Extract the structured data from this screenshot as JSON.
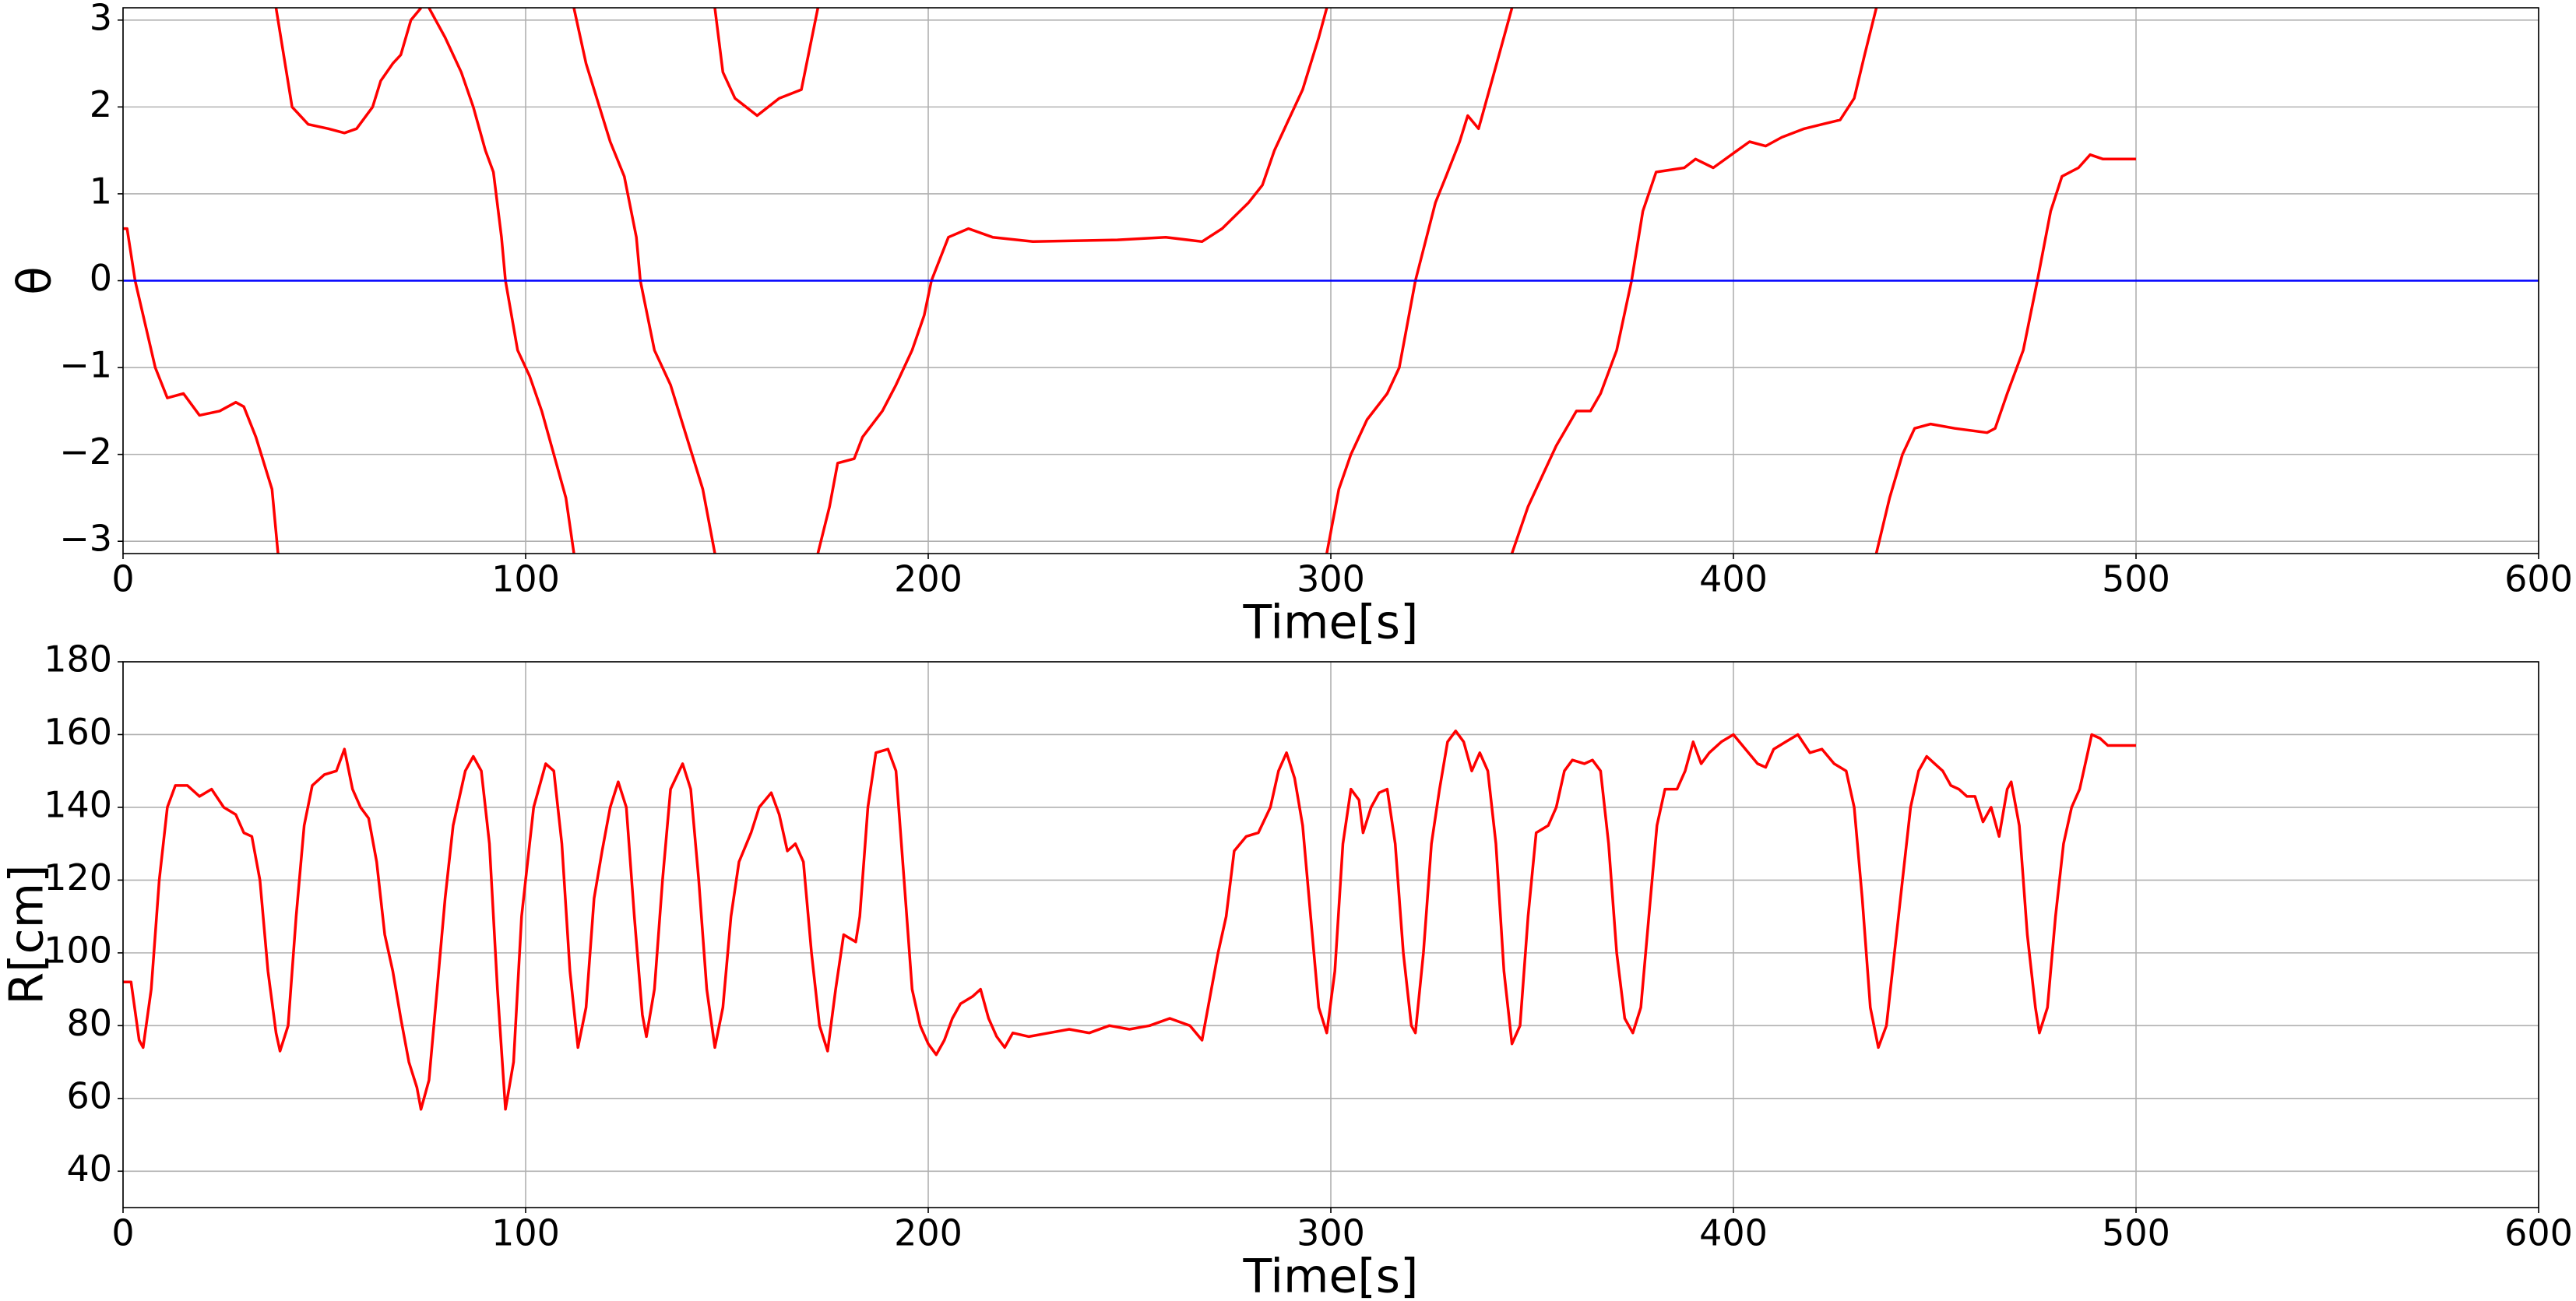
{
  "chart_data": [
    {
      "type": "line",
      "xlabel": "Time[s]",
      "ylabel": "θ",
      "xlim": [
        0,
        600
      ],
      "xticks": [
        0,
        100,
        200,
        300,
        400,
        500,
        600
      ],
      "ylim": [
        -3.14159,
        3.14159
      ],
      "yticks": [
        {
          "value": -3,
          "label": "−3"
        },
        {
          "value": -2,
          "label": "−2"
        },
        {
          "value": -1,
          "label": "−1"
        },
        0,
        1,
        2,
        3
      ],
      "grid": true,
      "series": [
        {
          "color": "#ff0000",
          "x": [
            0,
            1,
            3,
            8,
            11,
            15,
            19,
            24,
            28,
            30,
            33,
            37,
            38.5,
            38.6,
            38,
            42,
            46,
            51,
            55,
            58,
            62,
            64,
            67,
            69,
            71.5,
            74,
            74.1,
            76,
            80,
            84,
            87,
            90,
            92,
            94,
            95,
            98,
            101,
            104,
            107,
            110,
            112,
            112.1,
            112,
            115,
            121,
            124.5,
            127.5,
            128.5,
            132,
            136,
            140,
            144,
            147,
            147.1,
            147,
            149,
            152,
            157.5,
            163,
            168.5,
            172.6,
            172.7,
            172.6,
            175.5,
            177.5,
            181.6,
            183.7,
            188.6,
            192,
            196,
            199,
            200.8,
            205,
            210,
            216,
            226,
            247,
            259,
            268,
            273,
            279.6,
            283,
            286,
            289,
            293,
            297,
            299,
            299.1,
            299,
            302,
            305,
            309,
            314,
            317,
            321,
            326,
            328.6,
            332,
            334,
            336.7,
            340,
            345,
            345.1,
            345,
            349,
            353,
            356,
            361,
            364.5,
            367,
            371,
            374.7,
            377.5,
            380.8,
            387.8,
            390.6,
            395,
            401,
            404,
            408,
            412,
            417.6,
            422,
            426.5,
            430,
            432.6,
            435.5,
            435.6,
            435.5,
            438.8,
            442,
            445,
            449,
            455,
            463,
            465,
            468,
            472,
            475.5,
            478.8,
            481.6,
            485.7,
            488.6,
            491.8,
            500
          ],
          "values": [
            0.6,
            0.6,
            0,
            -1,
            -1.35,
            -1.3,
            -1.55,
            -1.5,
            -1.4,
            -1.45,
            -1.8,
            -2.4,
            -3.14,
            null,
            3.14,
            2.0,
            1.8,
            1.75,
            1.7,
            1.75,
            2.0,
            2.3,
            2.5,
            2.6,
            3.0,
            3.14,
            null,
            3.14,
            2.8,
            2.4,
            2.0,
            1.5,
            1.25,
            0.5,
            0,
            -0.8,
            -1.1,
            -1.5,
            -2.0,
            -2.5,
            -3.14,
            null,
            3.14,
            2.5,
            1.6,
            1.2,
            0.5,
            0,
            -0.8,
            -1.2,
            -1.8,
            -2.4,
            -3.14,
            null,
            3.14,
            2.4,
            2.1,
            1.9,
            2.1,
            2.2,
            3.14,
            null,
            -3.14,
            -2.6,
            -2.1,
            -2.05,
            -1.8,
            -1.5,
            -1.2,
            -0.8,
            -0.4,
            0,
            0.5,
            0.6,
            0.5,
            0.45,
            0.47,
            0.5,
            0.45,
            0.6,
            0.9,
            1.1,
            1.5,
            1.8,
            2.2,
            2.8,
            3.14,
            null,
            -3.14,
            -2.4,
            -2.0,
            -1.6,
            -1.3,
            -1.0,
            0,
            0.9,
            1.2,
            1.6,
            1.9,
            1.75,
            2.3,
            3.14,
            null,
            -3.14,
            -2.6,
            -2.2,
            -1.9,
            -1.5,
            -1.5,
            -1.3,
            -0.8,
            0,
            0.8,
            1.25,
            1.3,
            1.4,
            1.3,
            1.5,
            1.6,
            1.55,
            1.65,
            1.75,
            1.8,
            1.85,
            2.1,
            2.6,
            3.14,
            null,
            -3.14,
            -2.5,
            -2.0,
            -1.7,
            -1.65,
            -1.7,
            -1.75,
            -1.7,
            -1.3,
            -0.8,
            0,
            0.8,
            1.2,
            1.3,
            1.45,
            1.4,
            1.4
          ]
        },
        {
          "color": "#0000ff",
          "x": [
            0,
            600
          ],
          "values": [
            0,
            0
          ]
        }
      ]
    },
    {
      "type": "line",
      "xlabel": "Time[s]",
      "ylabel": "R[cm]",
      "xlim": [
        0,
        600
      ],
      "xticks": [
        0,
        100,
        200,
        300,
        400,
        500,
        600
      ],
      "ylim": [
        30,
        180
      ],
      "yticks": [
        40,
        60,
        80,
        100,
        120,
        140,
        160,
        180
      ],
      "grid": true,
      "series": [
        {
          "color": "#ff0000",
          "x": [
            0,
            2,
            4,
            5,
            7,
            9,
            11,
            13,
            16,
            19,
            22,
            25,
            28,
            30,
            32,
            34,
            36,
            38,
            39,
            41,
            43,
            45,
            47,
            50,
            53,
            55,
            57,
            59,
            61,
            63,
            65,
            67,
            69,
            71,
            73,
            74,
            76,
            78,
            80,
            82,
            85,
            87,
            89,
            91,
            93,
            95,
            97,
            99,
            102,
            105,
            107,
            109,
            111,
            113,
            115,
            117,
            119,
            121,
            123,
            125,
            127,
            129,
            130,
            132,
            134,
            136,
            139,
            141,
            143,
            145,
            147,
            149,
            151,
            153,
            156,
            158,
            161,
            163,
            165,
            167,
            169,
            171,
            173,
            175,
            177,
            179,
            182,
            183,
            185,
            187,
            190,
            192,
            194,
            196,
            198,
            200,
            202,
            204,
            206,
            208,
            211,
            213,
            215,
            217,
            219,
            221,
            225,
            230,
            235,
            240,
            245,
            250,
            255,
            260,
            265,
            268,
            270,
            272,
            274,
            276,
            279,
            282,
            285,
            287,
            289,
            291,
            293,
            295,
            297,
            299,
            301,
            303,
            305,
            307,
            308,
            310,
            312,
            314,
            316,
            318,
            320,
            321,
            323,
            325,
            327,
            329,
            331,
            333,
            335,
            337,
            339,
            341,
            343,
            345,
            347,
            349,
            351,
            354,
            356,
            358,
            360,
            363,
            365,
            367,
            369,
            371,
            373,
            375,
            377,
            379,
            381,
            383,
            386,
            388,
            390,
            392,
            394,
            397,
            400,
            403,
            406,
            408,
            410,
            413,
            416,
            419,
            422,
            425,
            428,
            430,
            432,
            434,
            436,
            438,
            440,
            442,
            444,
            446,
            448,
            450,
            452,
            454,
            456,
            458,
            460,
            462,
            464,
            466,
            468,
            469,
            471,
            473,
            475,
            476,
            478,
            480,
            482,
            484,
            486,
            488,
            489,
            491,
            493,
            500
          ],
          "values": [
            92,
            92,
            76,
            74,
            90,
            120,
            140,
            146,
            146,
            143,
            145,
            140,
            138,
            133,
            132,
            120,
            95,
            78,
            73,
            80,
            110,
            135,
            146,
            149,
            150,
            156,
            145,
            140,
            137,
            125,
            105,
            95,
            82,
            70,
            63,
            57,
            65,
            90,
            115,
            135,
            150,
            154,
            150,
            130,
            90,
            57,
            70,
            110,
            140,
            152,
            150,
            130,
            95,
            74,
            85,
            115,
            128,
            140,
            147,
            140,
            110,
            83,
            77,
            90,
            120,
            145,
            152,
            145,
            120,
            90,
            74,
            85,
            110,
            125,
            133,
            140,
            144,
            138,
            128,
            130,
            125,
            100,
            80,
            73,
            90,
            105,
            103,
            110,
            140,
            155,
            156,
            150,
            120,
            90,
            80,
            75,
            72,
            76,
            82,
            86,
            88,
            90,
            82,
            77,
            74,
            78,
            77,
            78,
            79,
            78,
            80,
            79,
            80,
            82,
            80,
            76,
            88,
            100,
            110,
            128,
            132,
            133,
            140,
            150,
            155,
            148,
            135,
            110,
            85,
            78,
            95,
            130,
            145,
            142,
            133,
            140,
            144,
            145,
            130,
            100,
            80,
            78,
            100,
            130,
            145,
            158,
            161,
            158,
            150,
            155,
            150,
            130,
            95,
            75,
            80,
            110,
            133,
            135,
            140,
            150,
            153,
            152,
            153,
            150,
            130,
            100,
            82,
            78,
            85,
            110,
            135,
            145,
            145,
            150,
            158,
            152,
            155,
            158,
            160,
            156,
            152,
            151,
            156,
            158,
            160,
            155,
            156,
            152,
            150,
            140,
            115,
            85,
            74,
            80,
            100,
            120,
            140,
            150,
            154,
            152,
            150,
            146,
            145,
            143,
            143,
            136,
            140,
            132,
            145,
            147,
            135,
            105,
            85,
            78,
            85,
            110,
            130,
            140,
            145,
            155,
            160,
            159,
            157,
            157
          ]
        }
      ]
    }
  ]
}
